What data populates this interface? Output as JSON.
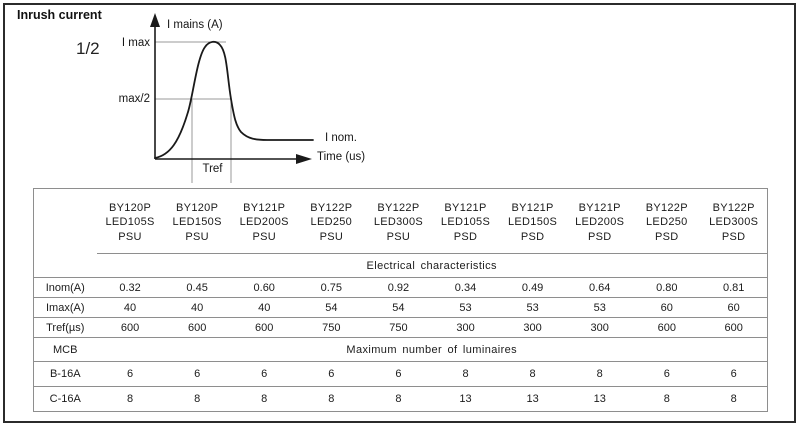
{
  "page": {
    "title": "Inrush current",
    "fraction": "1/2"
  },
  "diagram": {
    "y_axis_label": "I mains (A)",
    "x_axis_label": "Time (us)",
    "peak_label": "I max",
    "half_peak_label": "max/2",
    "pulse_width_label": "Tref",
    "nominal_label": "I nom."
  },
  "table": {
    "columns": [
      [
        "BY120P",
        "LED105S",
        "PSU"
      ],
      [
        "BY120P",
        "LED150S",
        "PSU"
      ],
      [
        "BY121P",
        "LED200S",
        "PSU"
      ],
      [
        "BY122P",
        "LED250",
        "PSU"
      ],
      [
        "BY122P",
        "LED300S",
        "PSU"
      ],
      [
        "BY121P",
        "LED105S",
        "PSD"
      ],
      [
        "BY121P",
        "LED150S",
        "PSD"
      ],
      [
        "BY121P",
        "LED200S",
        "PSD"
      ],
      [
        "BY122P",
        "LED250",
        "PSD"
      ],
      [
        "BY122P",
        "LED300S",
        "PSD"
      ]
    ],
    "rows": [
      {
        "type": "span",
        "label": "",
        "text": "Electrical characteristics"
      },
      {
        "type": "data",
        "label": "Inom(A)",
        "values": [
          "0.32",
          "0.45",
          "0.60",
          "0.75",
          "0.92",
          "0.34",
          "0.49",
          "0.64",
          "0.80",
          "0.81"
        ]
      },
      {
        "type": "data",
        "label": "Imax(A)",
        "values": [
          "40",
          "40",
          "40",
          "54",
          "54",
          "53",
          "53",
          "53",
          "60",
          "60"
        ]
      },
      {
        "type": "data",
        "label": "Tref(µs)",
        "values": [
          "600",
          "600",
          "600",
          "750",
          "750",
          "300",
          "300",
          "300",
          "600",
          "600"
        ]
      },
      {
        "type": "span",
        "label": "MCB",
        "text": "Maximum number of luminaires"
      },
      {
        "type": "data",
        "label": "B-16A",
        "values": [
          "6",
          "6",
          "6",
          "6",
          "6",
          "8",
          "8",
          "8",
          "6",
          "6"
        ]
      },
      {
        "type": "data",
        "label": "C-16A",
        "values": [
          "8",
          "8",
          "8",
          "8",
          "8",
          "13",
          "13",
          "13",
          "8",
          "8"
        ]
      }
    ]
  },
  "colors": {
    "text": "#1b1b1b",
    "rule_gray": "#8e8e8e",
    "curve_black": "#1a1a1a",
    "page_border": "#2b2b2b"
  }
}
